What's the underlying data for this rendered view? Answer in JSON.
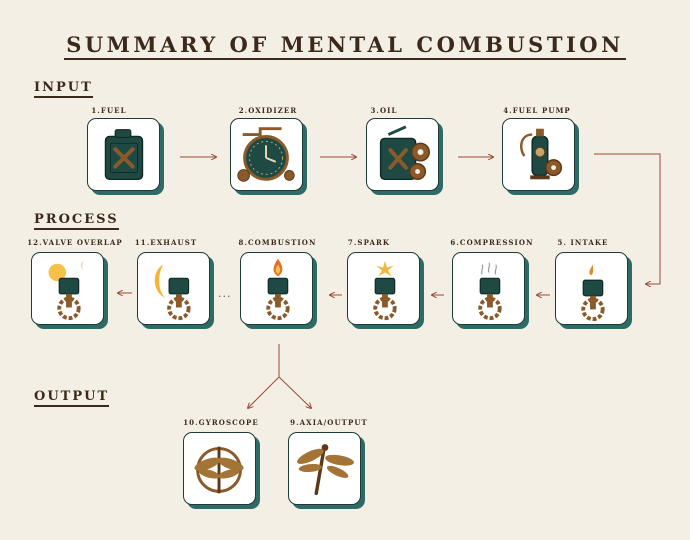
{
  "title": "SUMMARY OF MENTAL COMBUSTION",
  "sections": {
    "input": "INPUT",
    "process": "PROCESS",
    "output": "OUTPUT"
  },
  "steps": {
    "fuel": "1.FUEL",
    "oxidizer": "2.OXIDIZER",
    "oil": "3.OIL",
    "fuel_pump": "4.FUEL PUMP",
    "intake": "5. INTAKE",
    "compression": "6.COMPRESSION",
    "spark": "7.SPARK",
    "combustion": "8.COMBUSTION",
    "axia_output": "9.AXIA/OUTPUT",
    "gyroscope": "10.GYROSCOPE",
    "exhaust": "11.EXHAUST",
    "valve_overlap": "12.VALVE OVERLAP"
  },
  "ellipsis": "...",
  "colors": {
    "background": "#f4efe4",
    "ink": "#3b2a1c",
    "card_shadow": "#2e6b66",
    "arrow": "#9a4a38",
    "canister": "#1f4a44",
    "bronze": "#8a5a2b"
  }
}
